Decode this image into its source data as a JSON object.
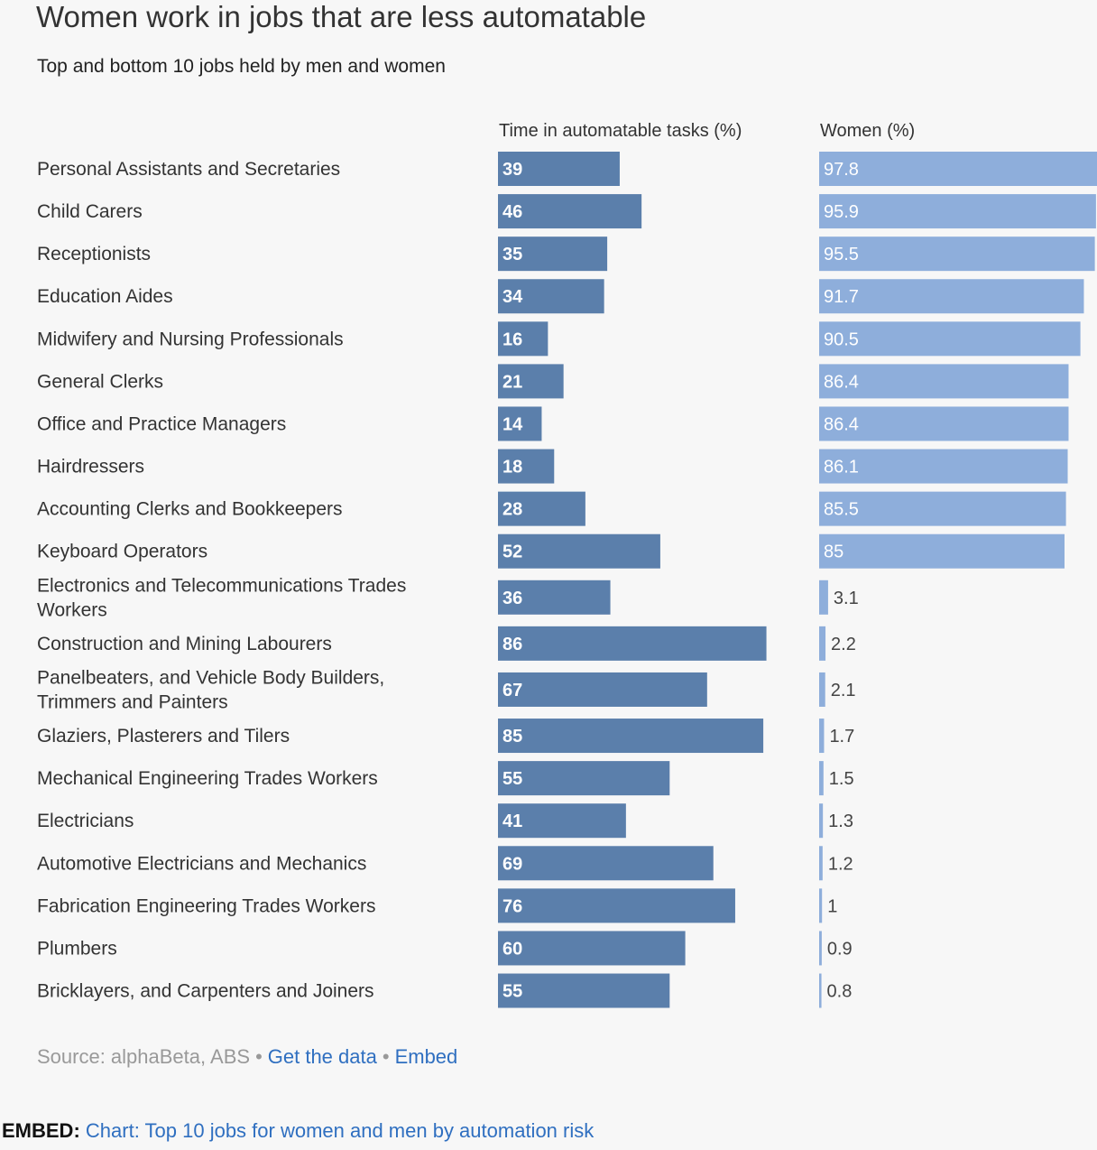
{
  "title": "Women work in jobs that are less automatable",
  "subtitle": "Top and bottom 10 jobs held by men and women",
  "footer": {
    "source": "Source: alphaBeta, ABS",
    "get_data": "Get the data",
    "embed": "Embed",
    "separator": "•"
  },
  "embed_line": {
    "label": "EMBED:",
    "link": "Chart: Top 10 jobs for women and men by automation risk"
  },
  "colors": {
    "automatable_bar": "#5b7fab",
    "women_bar": "#8eaedb",
    "label_inside": "#ffffff",
    "label_outside": "#444444"
  },
  "chart_data": {
    "type": "bar",
    "categories": [
      "Personal Assistants and Secretaries",
      "Child Carers",
      "Receptionists",
      "Education Aides",
      "Midwifery and Nursing Professionals",
      "General Clerks",
      "Office and Practice Managers",
      "Hairdressers",
      "Accounting Clerks and Bookkeepers",
      "Keyboard Operators",
      "Electronics and Telecommunications Trades Workers",
      "Construction and Mining Labourers",
      "Panelbeaters, and Vehicle Body Builders, Trimmers and Painters",
      "Glaziers, Plasterers and Tilers",
      "Mechanical Engineering Trades Workers",
      "Electricians",
      "Automotive Electricians and Mechanics",
      "Fabrication Engineering Trades Workers",
      "Plumbers",
      "Bricklayers, and Carpenters and Joiners"
    ],
    "series": [
      {
        "name": "Time in automatable tasks (%)",
        "values": [
          39,
          46,
          35,
          34,
          16,
          21,
          14,
          18,
          28,
          52,
          36,
          86,
          67,
          85,
          55,
          41,
          69,
          76,
          60,
          55
        ]
      },
      {
        "name": "Women (%)",
        "values": [
          97.8,
          95.9,
          95.5,
          91.7,
          90.5,
          86.4,
          86.4,
          86.1,
          85.5,
          85,
          3.1,
          2.2,
          2.1,
          1.7,
          1.5,
          1.3,
          1.2,
          1,
          0.9,
          0.8
        ]
      }
    ],
    "xlim": [
      0,
      100
    ],
    "grid": false,
    "legend": "none"
  }
}
